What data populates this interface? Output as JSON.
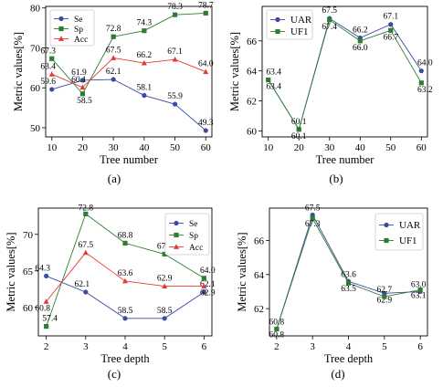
{
  "chart_data": [
    {
      "type": "line",
      "panel_label": "(a)",
      "xlabel": "Tree number",
      "ylabel": "Metric values[%]",
      "x": [
        10,
        20,
        30,
        40,
        50,
        60
      ],
      "xticks": [
        10,
        20,
        30,
        40,
        50,
        60
      ],
      "xlim": [
        8,
        62
      ],
      "ylim": [
        47.7,
        80.4
      ],
      "yticks": [
        50,
        60,
        70,
        80
      ],
      "legend_position": "top-left",
      "series": [
        {
          "name": "Se",
          "color": "#3c4b9f",
          "marker": "circle",
          "values": [
            59.6,
            61.9,
            62.1,
            58.1,
            55.9,
            49.3
          ],
          "labels": [
            "59.6",
            "61.9",
            "62.1",
            "58.1",
            "55.9",
            "49.3"
          ]
        },
        {
          "name": "Sp",
          "color": "#2e7d32",
          "marker": "square",
          "values": [
            67.3,
            58.5,
            72.8,
            74.3,
            78.3,
            78.7
          ],
          "labels": [
            "67.3",
            "58.5",
            "72.8",
            "74.3",
            "78.3",
            "78.7"
          ]
        },
        {
          "name": "Acc",
          "color": "#e53935",
          "marker": "triangle",
          "values": [
            63.4,
            60.1,
            67.5,
            66.2,
            67.1,
            64.0
          ],
          "labels": [
            "63.4",
            "60.1",
            "67.5",
            "66.2",
            "67.1",
            "64.0"
          ]
        }
      ]
    },
    {
      "type": "line",
      "panel_label": "(b)",
      "xlabel": "Tree number",
      "ylabel": "Metric values[%]",
      "x": [
        10,
        20,
        30,
        40,
        50,
        60
      ],
      "xticks": [
        10,
        20,
        30,
        40,
        50,
        60
      ],
      "xlim": [
        8,
        62
      ],
      "ylim": [
        59.6,
        68.3
      ],
      "yticks": [
        60,
        62,
        64,
        66
      ],
      "legend_position": "top-left",
      "series": [
        {
          "name": "UAR",
          "color": "#3c4b9f",
          "marker": "circle",
          "values": [
            63.4,
            60.1,
            67.5,
            66.2,
            67.1,
            64.0
          ],
          "labels": [
            "63.4",
            "60.1",
            "67.5",
            "66.2",
            "67.1",
            "64.0"
          ]
        },
        {
          "name": "UF1",
          "color": "#2e7d32",
          "marker": "square",
          "values": [
            63.4,
            60.1,
            67.4,
            66.0,
            66.7,
            63.2
          ],
          "labels": [
            "63.4",
            "60.1",
            "67.4",
            "66.0",
            "66.7",
            "63.2"
          ]
        }
      ]
    },
    {
      "type": "line",
      "panel_label": "(c)",
      "xlabel": "Tree depth",
      "ylabel": "Metric values[%]",
      "x": [
        2,
        3,
        4,
        5,
        6
      ],
      "xticks": [
        2,
        3,
        4,
        5,
        6
      ],
      "xlim": [
        1.8,
        6.2
      ],
      "ylim": [
        56.1,
        73.6
      ],
      "yticks": [
        60,
        65,
        70
      ],
      "legend_position": "top-right",
      "series": [
        {
          "name": "Se",
          "color": "#3c4b9f",
          "marker": "circle",
          "values": [
            64.3,
            62.1,
            58.5,
            58.5,
            62.1
          ],
          "labels": [
            "64.3",
            "62.1",
            "58.5",
            "58.5",
            "62.1"
          ]
        },
        {
          "name": "Sp",
          "color": "#2e7d32",
          "marker": "square",
          "values": [
            57.4,
            72.8,
            68.8,
            67.3,
            64.0
          ],
          "labels": [
            "57.4",
            "72.8",
            "68.8",
            "67.3",
            "64.0"
          ]
        },
        {
          "name": "Acc",
          "color": "#e53935",
          "marker": "triangle",
          "values": [
            60.8,
            67.5,
            63.6,
            62.9,
            62.9
          ],
          "labels": [
            "60.8",
            "67.5",
            "63.6",
            "62.9",
            "62.9"
          ]
        }
      ]
    },
    {
      "type": "line",
      "panel_label": "(d)",
      "xlabel": "Tree depth",
      "ylabel": "Metric values[%]",
      "x": [
        2,
        3,
        4,
        5,
        6
      ],
      "xticks": [
        2,
        3,
        4,
        5,
        6
      ],
      "xlim": [
        1.8,
        6.2
      ],
      "ylim": [
        60.4,
        67.9
      ],
      "yticks": [
        62,
        64,
        66
      ],
      "legend_position": "top-right",
      "series": [
        {
          "name": "UAR",
          "color": "#3c4b9f",
          "marker": "circle",
          "values": [
            60.8,
            67.5,
            63.6,
            62.9,
            63.0
          ],
          "labels": [
            "60.8",
            "67.5",
            "63.6",
            "62.9",
            "63.0"
          ]
        },
        {
          "name": "UF1",
          "color": "#2e7d32",
          "marker": "square",
          "values": [
            60.8,
            67.3,
            63.5,
            62.7,
            63.1
          ],
          "labels": [
            "60.8",
            "67.3",
            "63.5",
            "62.7",
            "63.1"
          ]
        }
      ]
    }
  ]
}
